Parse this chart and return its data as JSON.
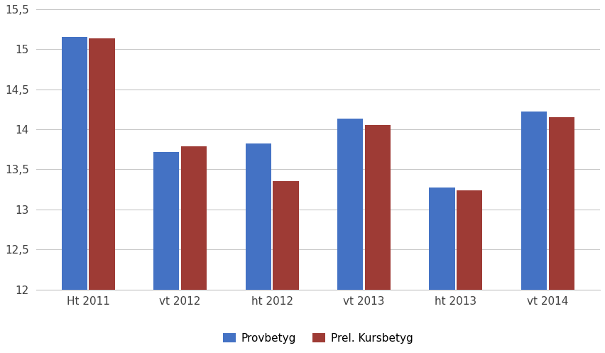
{
  "categories": [
    "Ht 2011",
    "vt 2012",
    "ht 2012",
    "vt 2013",
    "ht 2013",
    "vt 2014"
  ],
  "provbetyg": [
    15.15,
    13.72,
    13.82,
    14.13,
    13.27,
    14.22
  ],
  "kursbetyg": [
    15.14,
    13.79,
    13.35,
    14.05,
    13.24,
    14.15
  ],
  "provbetyg_color": "#4472C4",
  "kursbetyg_color": "#9E3B35",
  "legend_labels": [
    "Provbetyg",
    "Prel. Kursbetyg"
  ],
  "ylim_min": 12,
  "ylim_max": 15.5,
  "yticks": [
    12,
    12.5,
    13,
    13.5,
    14,
    14.5,
    15,
    15.5
  ],
  "ytick_labels": [
    "12",
    "12,5",
    "13",
    "13,5",
    "14",
    "14,5",
    "15",
    "15,5"
  ],
  "background_color": "#ffffff",
  "grid_color": "#c8c8c8",
  "bar_width": 0.28,
  "bar_gap": 0.02
}
